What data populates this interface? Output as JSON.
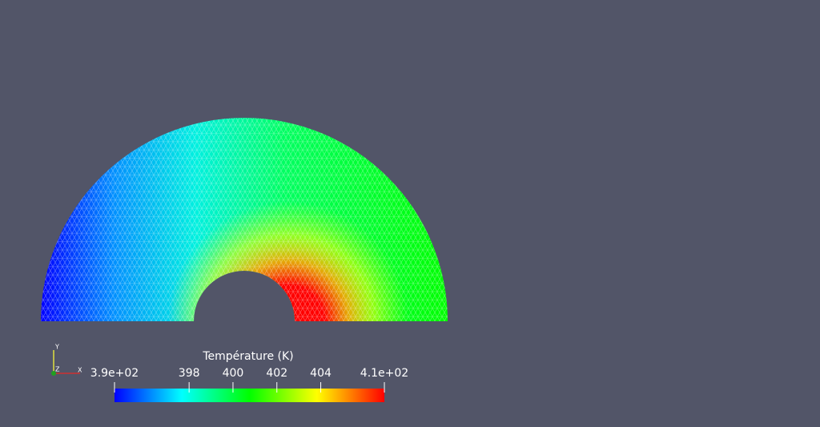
{
  "colorbar": {
    "title": "Température (K)",
    "range": [
      394.6,
      406.9
    ],
    "ticks": [
      {
        "value": 394.6,
        "label": "3.9e+02"
      },
      398,
      400,
      402,
      404,
      {
        "value": 406.9,
        "label": "4.1e+02"
      }
    ]
  },
  "orientation_axes": {
    "x": "X",
    "y": "Y",
    "z": "Z"
  }
}
